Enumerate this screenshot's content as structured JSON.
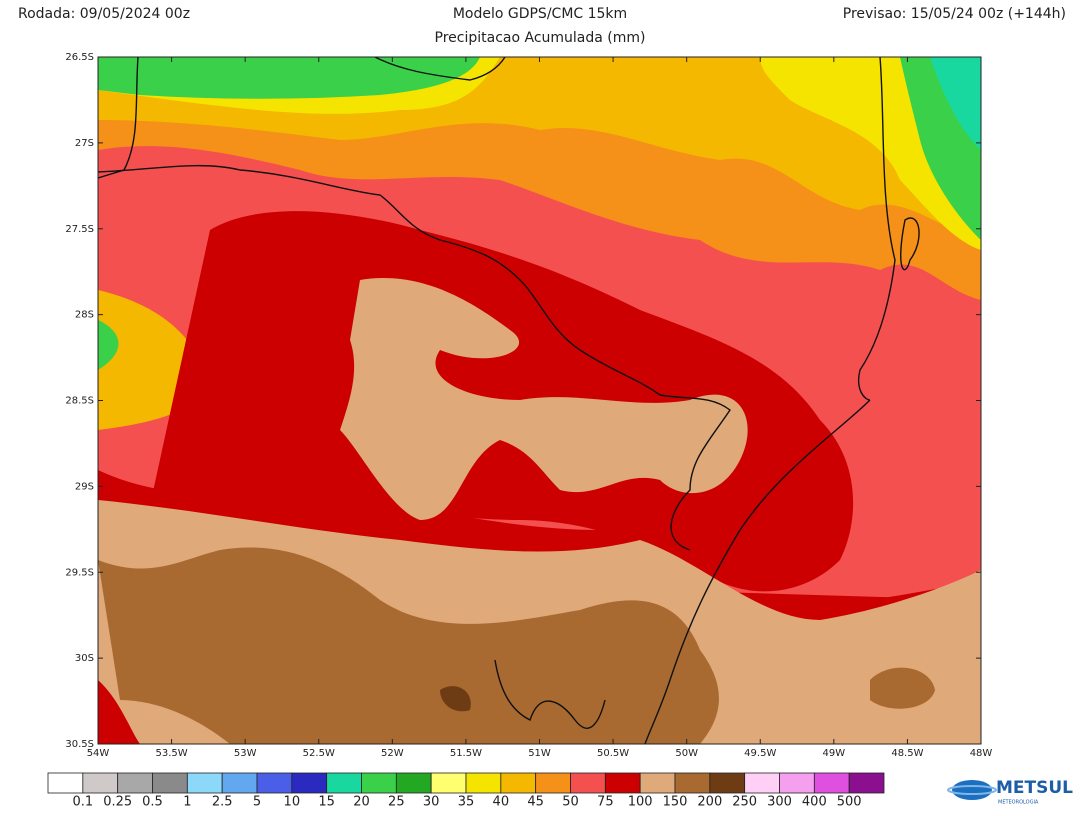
{
  "header": {
    "run": "Rodada: 09/05/2024 00z",
    "model": "Modelo GDPS/CMC 15km",
    "forecast": "Previsao: 15/05/24 00z (+144h)",
    "subtitle": "Precipitacao Acumulada (mm)"
  },
  "map": {
    "lat_labels": [
      "26.5S",
      "27S",
      "27.5S",
      "28S",
      "28.5S",
      "29S",
      "29.5S",
      "30S",
      "30.5S"
    ],
    "lon_labels": [
      "54W",
      "53.5W",
      "53W",
      "52.5W",
      "52W",
      "51.5W",
      "51W",
      "50.5W",
      "50W",
      "49.5W",
      "49W",
      "48.5W",
      "48W"
    ]
  },
  "colorbar": {
    "colors": [
      "#ffffff",
      "#cfc9c9",
      "#a8a8a8",
      "#8a8a8a",
      "#8cd8f8",
      "#62a8f0",
      "#4a5ee8",
      "#2a2ac0",
      "#18d8a0",
      "#3ad04a",
      "#22a822",
      "#ffff70",
      "#f5e400",
      "#f5b800",
      "#f59018",
      "#f55050",
      "#cc0000",
      "#dfa97a",
      "#a86a30",
      "#6e3c14",
      "#ffcff5",
      "#f5a0ee",
      "#e050e0",
      "#8a1090"
    ],
    "labels": [
      "0.1",
      "0.25",
      "0.5",
      "1",
      "2.5",
      "5",
      "10",
      "15",
      "20",
      "25",
      "30",
      "35",
      "40",
      "45",
      "50",
      "75",
      "100",
      "150",
      "200",
      "250",
      "300",
      "400",
      "500"
    ]
  },
  "logo": {
    "name": "METSUL",
    "tagline": "METEOROLOGIA"
  }
}
